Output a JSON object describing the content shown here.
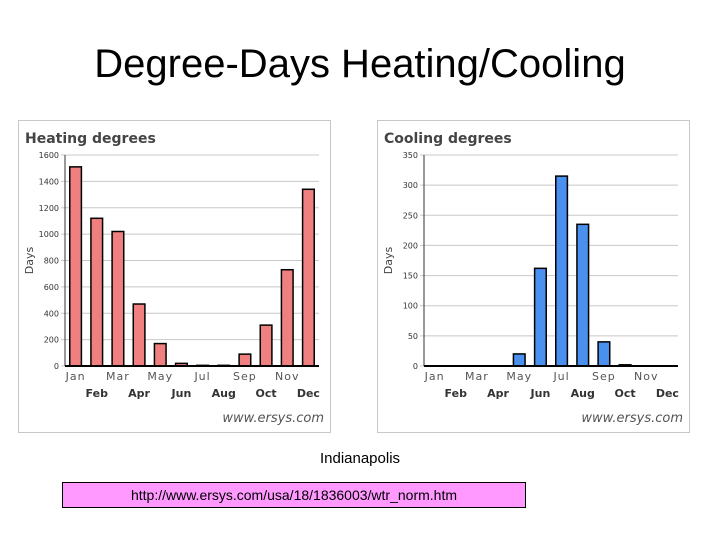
{
  "slide": {
    "title": "Degree-Days Heating/Cooling",
    "caption": "Indianapolis",
    "url": "http://www.ersys.com/usa/18/1836003/wtr_norm.htm"
  },
  "chart_data": [
    {
      "type": "bar",
      "title": "Heating degrees",
      "ylabel": "Days",
      "categories": [
        "Jan",
        "Feb",
        "Mar",
        "Apr",
        "May",
        "Jun",
        "Jul",
        "Aug",
        "Sep",
        "Oct",
        "Nov",
        "Dec"
      ],
      "values": [
        1510,
        1120,
        1020,
        470,
        170,
        20,
        5,
        5,
        90,
        310,
        730,
        1340
      ],
      "ylim": [
        0,
        1600
      ],
      "yticks": [
        0,
        200,
        400,
        600,
        800,
        1000,
        1200,
        1400,
        1600
      ],
      "color": "#f08080",
      "watermark": "www.ersys.com"
    },
    {
      "type": "bar",
      "title": "Cooling degrees",
      "ylabel": "Days",
      "categories": [
        "Jan",
        "Feb",
        "Mar",
        "Apr",
        "May",
        "Jun",
        "Jul",
        "Aug",
        "Sep",
        "Oct",
        "Nov",
        "Dec"
      ],
      "values": [
        0,
        0,
        0,
        0,
        20,
        162,
        315,
        235,
        40,
        2,
        0,
        0
      ],
      "ylim": [
        0,
        350
      ],
      "yticks": [
        0,
        50,
        100,
        150,
        200,
        250,
        300,
        350
      ],
      "color": "#4a90ee",
      "watermark": "www.ersys.com"
    }
  ]
}
